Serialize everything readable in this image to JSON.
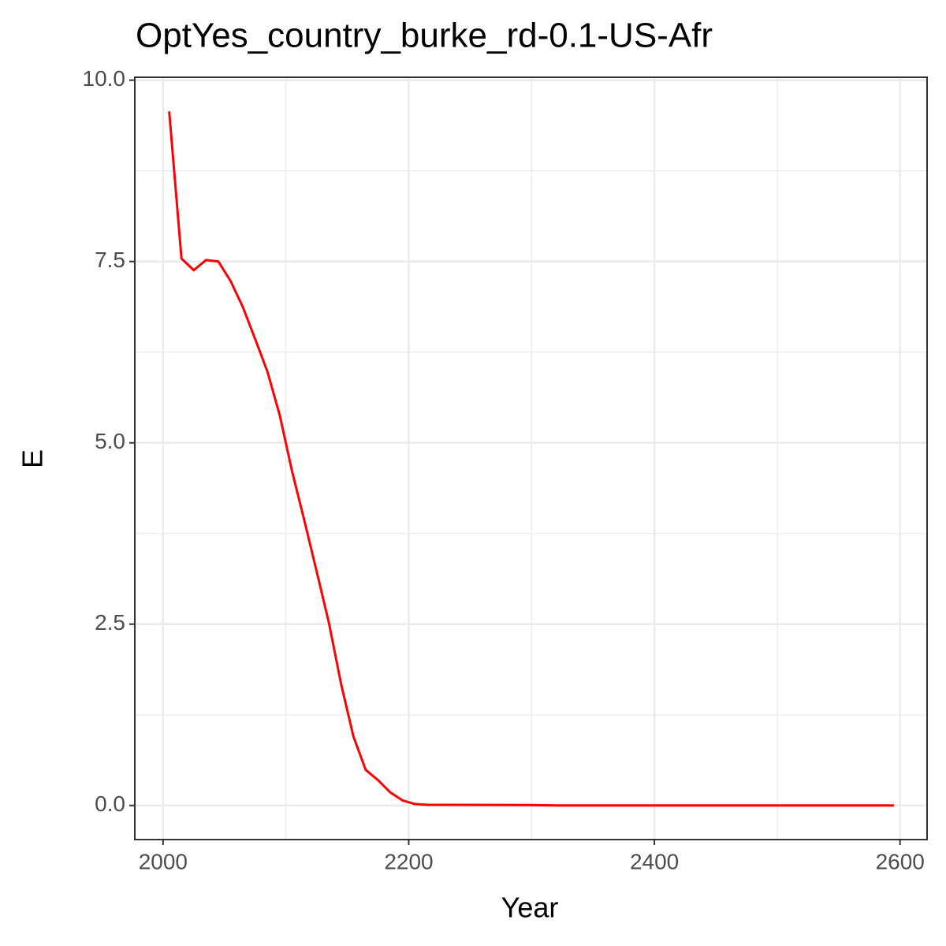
{
  "chart_data": {
    "type": "line",
    "title": "OptYes_country_burke_rd-0.1-US-Afr",
    "x_label": "Year",
    "y_label": "E",
    "x": [
      2005,
      2015,
      2025,
      2035,
      2045,
      2055,
      2065,
      2075,
      2085,
      2095,
      2105,
      2115,
      2125,
      2135,
      2145,
      2155,
      2165,
      2175,
      2185,
      2195,
      2205,
      2215,
      2300,
      2320,
      2400,
      2500,
      2595
    ],
    "series": [
      {
        "name": "E",
        "color": "#ff0000",
        "values": [
          9.57,
          7.54,
          7.38,
          7.52,
          7.5,
          7.23,
          6.87,
          6.43,
          5.98,
          5.38,
          4.61,
          3.93,
          3.23,
          2.52,
          1.67,
          0.95,
          0.49,
          0.35,
          0.18,
          0.07,
          0.02,
          0.01,
          0.005,
          0,
          0,
          0,
          0
        ]
      }
    ],
    "xlim": [
      1977,
      2622
    ],
    "ylim": [
      -0.47,
      10.04
    ],
    "xticks": [
      2000,
      2200,
      2400,
      2600
    ],
    "yticks": [
      {
        "value": 0,
        "label": "0.0"
      },
      2.5,
      {
        "value": 5,
        "label": "5.0"
      },
      7.5,
      {
        "value": 10,
        "label": "10.0"
      }
    ],
    "grid": true
  }
}
